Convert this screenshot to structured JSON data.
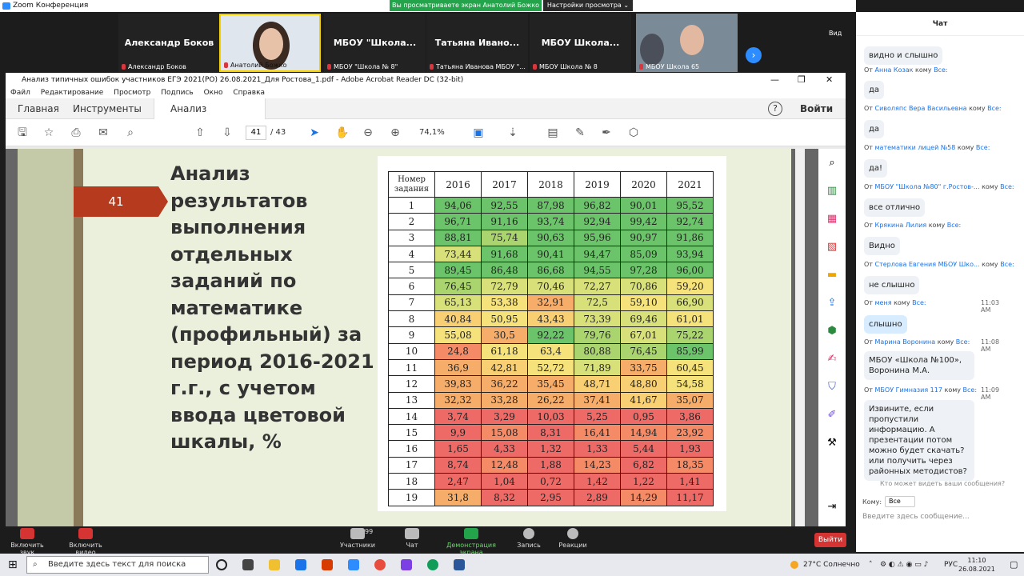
{
  "zoom": {
    "window_title": "Zoom Конференция",
    "share_banner": "Вы просматриваете экран Анатолий Божко",
    "view_options": "Настройки просмотра ⌄",
    "view_label": "Вид",
    "tiles": [
      {
        "big": "Александр Боков",
        "small": "Александр Боков"
      },
      {
        "big": "",
        "small": "Анатолий Божко"
      },
      {
        "big": "МБОУ  \"Школа...",
        "small": "МБОУ \"Школа № 8\""
      },
      {
        "big": "Татьяна  Ивано...",
        "small": "Татьяна Иванова МБОУ \"..."
      },
      {
        "big": "МБОУ  Школа...",
        "small": "МБОУ Школа № 8"
      },
      {
        "big": "",
        "small": "МБОУ Школа 65"
      }
    ]
  },
  "acrobat": {
    "title": "Анализ типичных ошибок участников ЕГЭ 2021(РО)  26.08.2021_Для Ростова_1.pdf - Adobe Acrobat Reader DC (32-bit)",
    "menu": [
      "Файл",
      "Редактирование",
      "Просмотр",
      "Подпись",
      "Окно",
      "Справка"
    ],
    "tabs": {
      "home": "Главная",
      "tools": "Инструменты",
      "doc": "Анализ типичных ..."
    },
    "signin": "Войти",
    "help": "?",
    "page_current": "41",
    "page_total": "/  43",
    "zoom": "74,1%"
  },
  "slide": {
    "number": "41",
    "title": "Анализ результатов выполнения отдельных заданий по математике (профильный) за период 2016-2021 г.г., с учетом ввода цветовой шкалы, %",
    "header": [
      "Номер задания",
      "2016",
      "2017",
      "2018",
      "2019",
      "2020",
      "2021"
    ],
    "rows": [
      [
        "1",
        "94,06",
        "92,55",
        "87,98",
        "96,82",
        "90,01",
        "95,52"
      ],
      [
        "2",
        "96,71",
        "91,16",
        "93,74",
        "92,94",
        "99,42",
        "92,74"
      ],
      [
        "3",
        "88,81",
        "75,74",
        "90,63",
        "95,96",
        "90,97",
        "91,86"
      ],
      [
        "4",
        "73,44",
        "91,68",
        "90,41",
        "94,47",
        "85,09",
        "93,94"
      ],
      [
        "5",
        "89,45",
        "86,48",
        "86,68",
        "94,55",
        "97,28",
        "96,00"
      ],
      [
        "6",
        "76,45",
        "72,79",
        "70,46",
        "72,27",
        "70,86",
        "59,20"
      ],
      [
        "7",
        "65,13",
        "53,38",
        "32,91",
        "72,5",
        "59,10",
        "66,90"
      ],
      [
        "8",
        "40,84",
        "50,95",
        "43,43",
        "73,39",
        "69,46",
        "61,01"
      ],
      [
        "9",
        "55,08",
        "30,5",
        "92,22",
        "79,76",
        "67,01",
        "75,22"
      ],
      [
        "10",
        "24,8",
        "61,18",
        "63,4",
        "80,88",
        "76,45",
        "85,99"
      ],
      [
        "11",
        "36,9",
        "42,81",
        "52,72",
        "71,89",
        "33,75",
        "60,45"
      ],
      [
        "12",
        "39,83",
        "36,22",
        "35,45",
        "48,71",
        "48,80",
        "54,58"
      ],
      [
        "13",
        "32,32",
        "33,28",
        "26,22",
        "37,41",
        "41,67",
        "35,07"
      ],
      [
        "14",
        "3,74",
        "3,29",
        "10,03",
        "5,25",
        "0,95",
        "3,86"
      ],
      [
        "15",
        "9,9",
        "15,08",
        "8,31",
        "16,41",
        "14,94",
        "23,92"
      ],
      [
        "16",
        "1,65",
        "4,33",
        "1,32",
        "1,33",
        "5,44",
        "1,93"
      ],
      [
        "17",
        "8,74",
        "12,48",
        "1,88",
        "14,23",
        "6,82",
        "18,35"
      ],
      [
        "18",
        "2,47",
        "1,04",
        "0,72",
        "1,42",
        "1,22",
        "1,41"
      ],
      [
        "19",
        "31,8",
        "8,32",
        "2,95",
        "2,89",
        "14,29",
        "11,17"
      ]
    ]
  },
  "controls": {
    "mute": "Включить звук",
    "video": "Включить видео",
    "participants": "Участники",
    "participants_count": "99",
    "chat": "Чат",
    "share": "Демонстрация экрана",
    "record": "Запись",
    "reactions": "Реакции",
    "leave": "Выйти"
  },
  "chat": {
    "title": "Чат",
    "messages": [
      {
        "from": "",
        "to": "",
        "time": "",
        "text": "видно и слышно"
      },
      {
        "from": "Анна Козак",
        "to": "Все:",
        "time": "",
        "text": "да"
      },
      {
        "from": "Сиволяпс Вера Васильевна",
        "to": "Все:",
        "time": "",
        "text": "да"
      },
      {
        "from": "математики лицей №58",
        "to": "Все:",
        "time": "",
        "text": "да!"
      },
      {
        "from": "МБОУ \"Школа №80\" г.Ростов-...",
        "to": "Все:",
        "time": "",
        "text": "все отлично"
      },
      {
        "from": "Крякина Лилия",
        "to": "Все:",
        "time": "",
        "text": "Видно"
      },
      {
        "from": "Стерлова Евгения МБОУ Шко...",
        "to": "Все:",
        "time": "",
        "text": "не слышно"
      },
      {
        "from": "меня",
        "to": "Все:",
        "time": "11:03 AM",
        "text": "слышно"
      },
      {
        "from": "Марина Воронина",
        "to": "Все:",
        "time": "11:08 AM",
        "text": "МБОУ «Школа №100», Воронина М.А."
      },
      {
        "from": "МБОУ Гимназия 117",
        "to": "Все:",
        "time": "11:09 AM",
        "text": "Извините, если пропустили информацию. А презентации потом можно будет скачать? или получить через районных методистов?"
      }
    ],
    "prefix_from": "От",
    "prefix_to": "кому",
    "who_sees": "Кто может видеть ваши сообщения?",
    "to_label": "Кому:",
    "to_value": "Все",
    "input_placeholder": "Введите здесь сообщение..."
  },
  "taskbar": {
    "search": "Введите здесь текст для поиска",
    "weather": "27°C  Солнечно",
    "lang": "РУС",
    "time": "11:10",
    "date": "26.08.2021"
  }
}
